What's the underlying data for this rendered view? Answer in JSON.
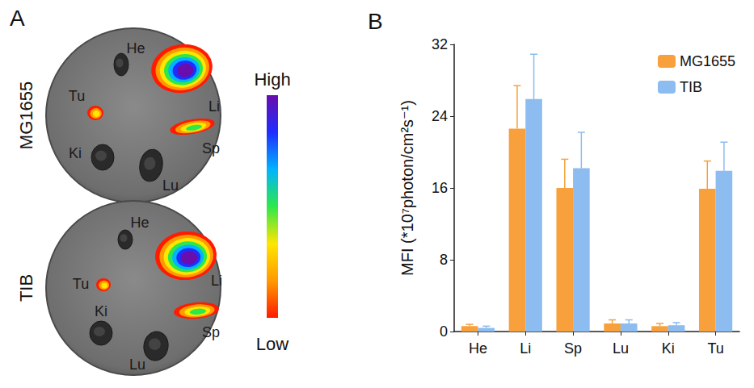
{
  "panel_a": {
    "panel_label": "A",
    "rows": [
      {
        "label": "MG1655",
        "organs": [
          "He",
          "Li",
          "Sp",
          "Lu",
          "Ki",
          "Tu"
        ]
      },
      {
        "label": "TIB",
        "organs": [
          "He",
          "Li",
          "Sp",
          "Lu",
          "Ki",
          "Tu"
        ]
      }
    ],
    "colorbar": {
      "top": "High",
      "bottom": "Low"
    }
  },
  "chart_data": {
    "type": "bar",
    "panel_label": "B",
    "y_label": "MFI (*10⁷photon/cm²s⁻¹)",
    "categories": [
      "He",
      "Li",
      "Sp",
      "Lu",
      "Ki",
      "Tu"
    ],
    "series": [
      {
        "name": "MG1655",
        "color": "#f7a03c",
        "values": [
          0.6,
          22.6,
          16.0,
          0.9,
          0.6,
          15.9
        ],
        "errors": [
          0.2,
          4.8,
          3.2,
          0.4,
          0.3,
          3.1
        ]
      },
      {
        "name": "TIB",
        "color": "#8cbcf0",
        "values": [
          0.4,
          25.9,
          18.2,
          0.9,
          0.7,
          17.9
        ],
        "errors": [
          0.2,
          5.0,
          4.0,
          0.4,
          0.3,
          3.2
        ]
      }
    ],
    "ylim": [
      0,
      32
    ],
    "yticks": [
      0,
      8,
      16,
      24,
      32
    ],
    "grid": false,
    "legend": "top-right"
  }
}
